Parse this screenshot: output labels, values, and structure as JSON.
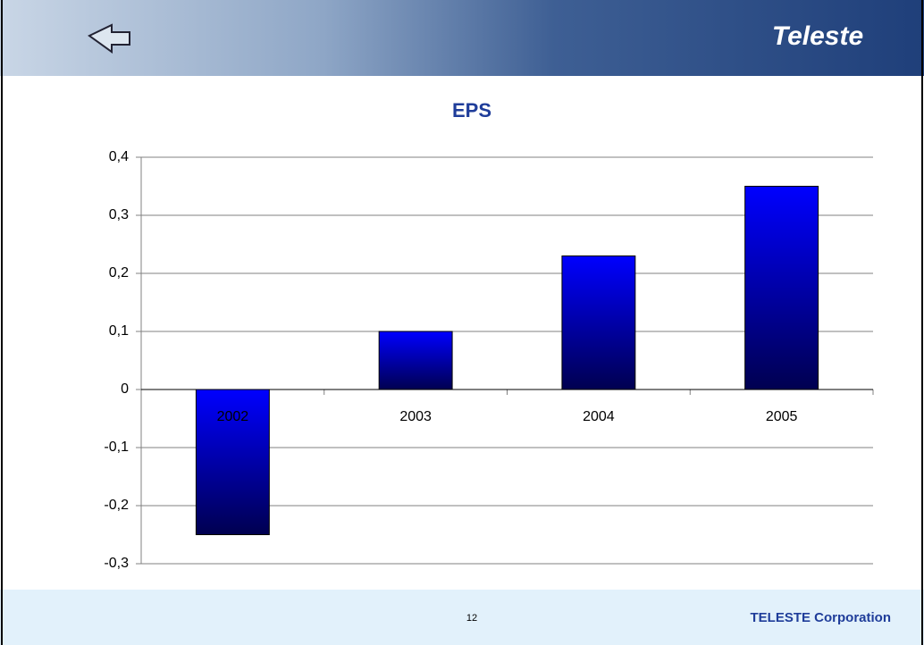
{
  "logo": "Teleste",
  "chart_data": {
    "type": "bar",
    "title": "EPS",
    "categories": [
      "2002",
      "2003",
      "2004",
      "2005"
    ],
    "values": [
      -0.25,
      0.1,
      0.23,
      0.35
    ],
    "color": "#0000ff",
    "ylim": [
      -0.3,
      0.4
    ],
    "yticks": [
      {
        "value": -0.3,
        "label": "-0,3"
      },
      {
        "value": -0.2,
        "label": "-0,2"
      },
      {
        "value": -0.1,
        "label": "-0,1"
      },
      0,
      {
        "value": 0.1,
        "label": "0,1"
      },
      {
        "value": 0.2,
        "label": "0,2"
      },
      {
        "value": 0.3,
        "label": "0,3"
      },
      {
        "value": 0.4,
        "label": "0,4"
      }
    ],
    "grid": true
  },
  "footer": {
    "page": "12",
    "company": "TELESTE Corporation"
  }
}
